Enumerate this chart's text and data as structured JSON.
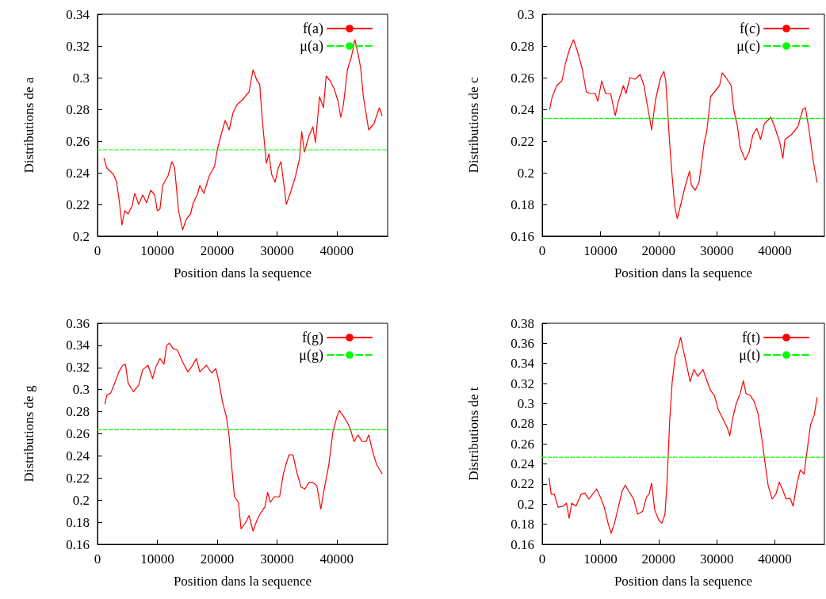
{
  "chart_data": [
    {
      "type": "line",
      "xlabel": "Position dans la sequence",
      "ylabel": "Distributions de a",
      "xlim": [
        0,
        48500
      ],
      "xticks": [
        0,
        10000,
        20000,
        30000,
        40000
      ],
      "ylim": [
        0.2,
        0.34
      ],
      "yticks": [
        0.2,
        0.22,
        0.24,
        0.26,
        0.28,
        0.3,
        0.32,
        0.34
      ],
      "legend": "top right",
      "series": [
        {
          "name": "f(a)",
          "color": "#ff0000",
          "line_style": "solid",
          "x": [
            1100,
            1550,
            2670,
            3200,
            3640,
            4090,
            4530,
            5110,
            5780,
            6220,
            6890,
            7560,
            8220,
            8890,
            9560,
            10000,
            10440,
            10890,
            11780,
            12440,
            12890,
            13550,
            14220,
            14890,
            15550,
            16000,
            16670,
            17110,
            17780,
            18670,
            19560,
            20000,
            20670,
            21330,
            22000,
            22670,
            23330,
            24220,
            25330,
            26000,
            26670,
            27110,
            27560,
            28220,
            28670,
            29110,
            29690,
            30220,
            30670,
            31110,
            31560,
            32220,
            33110,
            33780,
            34130,
            34580,
            35330,
            36000,
            36440,
            37110,
            37780,
            38220,
            38890,
            39560,
            40220,
            40670,
            41110,
            41780,
            42440,
            43020,
            43560,
            44000,
            44440,
            45330,
            46220,
            47110,
            47560
          ],
          "values": [
            0.249,
            0.243,
            0.239,
            0.234,
            0.222,
            0.207,
            0.216,
            0.214,
            0.219,
            0.227,
            0.22,
            0.226,
            0.221,
            0.229,
            0.226,
            0.216,
            0.217,
            0.232,
            0.238,
            0.247,
            0.243,
            0.216,
            0.204,
            0.211,
            0.214,
            0.221,
            0.226,
            0.232,
            0.227,
            0.238,
            0.244,
            0.254,
            0.264,
            0.273,
            0.267,
            0.278,
            0.283,
            0.286,
            0.291,
            0.305,
            0.298,
            0.296,
            0.273,
            0.246,
            0.252,
            0.239,
            0.234,
            0.243,
            0.247,
            0.234,
            0.22,
            0.227,
            0.238,
            0.249,
            0.266,
            0.253,
            0.263,
            0.269,
            0.259,
            0.288,
            0.281,
            0.301,
            0.298,
            0.293,
            0.285,
            0.275,
            0.283,
            0.305,
            0.313,
            0.324,
            0.315,
            0.306,
            0.288,
            0.267,
            0.271,
            0.281,
            0.276
          ]
        },
        {
          "name": "μ(a)",
          "color": "#00ff00",
          "line_style": "dashed",
          "x": [
            0,
            48500
          ],
          "values": [
            0.2545,
            0.2545
          ]
        }
      ]
    },
    {
      "type": "line",
      "xlabel": "Position dans la sequence",
      "ylabel": "Distributions de c",
      "xlim": [
        0,
        48500
      ],
      "xticks": [
        0,
        10000,
        20000,
        30000,
        40000
      ],
      "ylim": [
        0.16,
        0.3
      ],
      "yticks": [
        0.16,
        0.18,
        0.2,
        0.22,
        0.24,
        0.26,
        0.28,
        0.3
      ],
      "legend": "top right",
      "series": [
        {
          "name": "f(c)",
          "color": "#ff0000",
          "line_style": "solid",
          "x": [
            1280,
            1720,
            2510,
            3390,
            4050,
            4710,
            5370,
            6030,
            6920,
            7580,
            8240,
            9120,
            9560,
            10220,
            10880,
            11760,
            12550,
            13080,
            13960,
            14400,
            15070,
            15950,
            16830,
            17490,
            18150,
            18810,
            19470,
            20350,
            20920,
            21230,
            21890,
            22330,
            22770,
            23210,
            23880,
            24540,
            25330,
            25640,
            26300,
            26960,
            27840,
            28280,
            28940,
            29820,
            30480,
            30920,
            31580,
            32470,
            32910,
            33570,
            34010,
            34890,
            35550,
            36210,
            36870,
            37530,
            38190,
            39290,
            39950,
            40830,
            41360,
            41720,
            42820,
            43920,
            44800,
            45240,
            45900,
            46560,
            47220
          ],
          "values": [
            0.24,
            0.248,
            0.255,
            0.258,
            0.27,
            0.278,
            0.284,
            0.277,
            0.265,
            0.251,
            0.25,
            0.25,
            0.245,
            0.258,
            0.25,
            0.25,
            0.236,
            0.245,
            0.255,
            0.25,
            0.26,
            0.259,
            0.262,
            0.255,
            0.241,
            0.227,
            0.246,
            0.26,
            0.264,
            0.258,
            0.219,
            0.198,
            0.179,
            0.171,
            0.181,
            0.191,
            0.201,
            0.192,
            0.189,
            0.194,
            0.219,
            0.226,
            0.248,
            0.252,
            0.255,
            0.263,
            0.26,
            0.255,
            0.24,
            0.229,
            0.216,
            0.208,
            0.213,
            0.224,
            0.228,
            0.221,
            0.231,
            0.235,
            0.229,
            0.219,
            0.209,
            0.221,
            0.224,
            0.229,
            0.24,
            0.241,
            0.226,
            0.208,
            0.194
          ]
        },
        {
          "name": "μ(c)",
          "color": "#00ff00",
          "line_style": "dashed",
          "x": [
            0,
            48500
          ],
          "values": [
            0.2343,
            0.2343
          ]
        }
      ]
    },
    {
      "type": "line",
      "xlabel": "Position dans la sequence",
      "ylabel": "Distributions de g",
      "xlim": [
        0,
        48500
      ],
      "xticks": [
        0,
        10000,
        20000,
        30000,
        40000
      ],
      "ylim": [
        0.16,
        0.36
      ],
      "yticks": [
        0.16,
        0.18,
        0.2,
        0.22,
        0.24,
        0.26,
        0.28,
        0.3,
        0.32,
        0.34,
        0.36
      ],
      "legend": "top right",
      "series": [
        {
          "name": "f(g)",
          "color": "#ff0000",
          "line_style": "solid",
          "x": [
            1240,
            1560,
            2220,
            2890,
            3560,
            4220,
            4670,
            5110,
            6000,
            6890,
            7560,
            8440,
            9200,
            9780,
            10440,
            11110,
            11560,
            12000,
            12670,
            13330,
            14220,
            15110,
            15780,
            16530,
            17110,
            18220,
            19110,
            19780,
            20220,
            20890,
            21560,
            22000,
            22440,
            22890,
            23560,
            24000,
            24670,
            25330,
            26000,
            26670,
            27330,
            28000,
            28440,
            28890,
            29550,
            30440,
            31110,
            32000,
            32670,
            33330,
            34000,
            34670,
            35330,
            36000,
            36670,
            37330,
            38000,
            38670,
            39330,
            40000,
            40440,
            41110,
            41780,
            42220,
            42890,
            43560,
            44220,
            44890,
            45330,
            46000,
            46670,
            47560
          ],
          "values": [
            0.287,
            0.295,
            0.297,
            0.306,
            0.316,
            0.322,
            0.323,
            0.306,
            0.298,
            0.304,
            0.318,
            0.322,
            0.31,
            0.321,
            0.328,
            0.323,
            0.34,
            0.342,
            0.337,
            0.336,
            0.325,
            0.316,
            0.321,
            0.328,
            0.316,
            0.322,
            0.315,
            0.319,
            0.309,
            0.289,
            0.275,
            0.258,
            0.23,
            0.203,
            0.198,
            0.174,
            0.179,
            0.186,
            0.172,
            0.182,
            0.189,
            0.194,
            0.207,
            0.198,
            0.203,
            0.203,
            0.225,
            0.241,
            0.241,
            0.225,
            0.212,
            0.21,
            0.216,
            0.216,
            0.213,
            0.192,
            0.213,
            0.232,
            0.261,
            0.275,
            0.281,
            0.276,
            0.27,
            0.265,
            0.253,
            0.259,
            0.253,
            0.253,
            0.259,
            0.244,
            0.232,
            0.224
          ]
        },
        {
          "name": "μ(g)",
          "color": "#00ff00",
          "line_style": "dashed",
          "x": [
            0,
            48500
          ],
          "values": [
            0.2637,
            0.2637
          ]
        }
      ]
    },
    {
      "type": "line",
      "xlabel": "Position dans la sequence",
      "ylabel": "Distributions de t",
      "xlim": [
        0,
        48500
      ],
      "xticks": [
        0,
        10000,
        20000,
        30000,
        40000
      ],
      "ylim": [
        0.16,
        0.38
      ],
      "yticks": [
        0.16,
        0.18,
        0.2,
        0.22,
        0.24,
        0.26,
        0.28,
        0.3,
        0.32,
        0.34,
        0.36,
        0.38
      ],
      "legend": "top right",
      "series": [
        {
          "name": "f(t)",
          "color": "#ff0000",
          "line_style": "solid",
          "x": [
            1190,
            1540,
            2070,
            2730,
            3610,
            4180,
            4630,
            5070,
            5810,
            6700,
            7360,
            8020,
            8680,
            9340,
            10000,
            10660,
            11320,
            11850,
            12420,
            13080,
            13740,
            14270,
            14840,
            15720,
            16390,
            17270,
            17930,
            18370,
            18810,
            19340,
            20040,
            20570,
            21100,
            21450,
            21890,
            22330,
            22860,
            23430,
            23790,
            24310,
            24980,
            25420,
            26080,
            26740,
            27620,
            28280,
            28940,
            29600,
            30260,
            31140,
            31800,
            32240,
            32680,
            33340,
            34000,
            34580,
            35020,
            35770,
            36430,
            37090,
            37750,
            38410,
            38850,
            39510,
            40170,
            40740,
            41270,
            41930,
            42590,
            43120,
            43690,
            44350,
            45010,
            45450,
            46110,
            46770,
            47220
          ],
          "values": [
            0.226,
            0.21,
            0.21,
            0.197,
            0.198,
            0.201,
            0.186,
            0.201,
            0.198,
            0.21,
            0.211,
            0.205,
            0.21,
            0.215,
            0.207,
            0.197,
            0.181,
            0.171,
            0.181,
            0.197,
            0.213,
            0.219,
            0.213,
            0.205,
            0.19,
            0.193,
            0.207,
            0.21,
            0.221,
            0.194,
            0.184,
            0.181,
            0.19,
            0.221,
            0.281,
            0.321,
            0.347,
            0.358,
            0.366,
            0.352,
            0.334,
            0.322,
            0.334,
            0.327,
            0.334,
            0.323,
            0.313,
            0.308,
            0.294,
            0.284,
            0.276,
            0.268,
            0.284,
            0.3,
            0.31,
            0.323,
            0.31,
            0.308,
            0.302,
            0.29,
            0.265,
            0.236,
            0.218,
            0.205,
            0.21,
            0.222,
            0.215,
            0.205,
            0.206,
            0.198,
            0.218,
            0.234,
            0.23,
            0.25,
            0.279,
            0.289,
            0.306
          ]
        },
        {
          "name": "μ(t)",
          "color": "#00ff00",
          "line_style": "dashed",
          "x": [
            0,
            48500
          ],
          "values": [
            0.2467,
            0.2467
          ]
        }
      ]
    }
  ]
}
